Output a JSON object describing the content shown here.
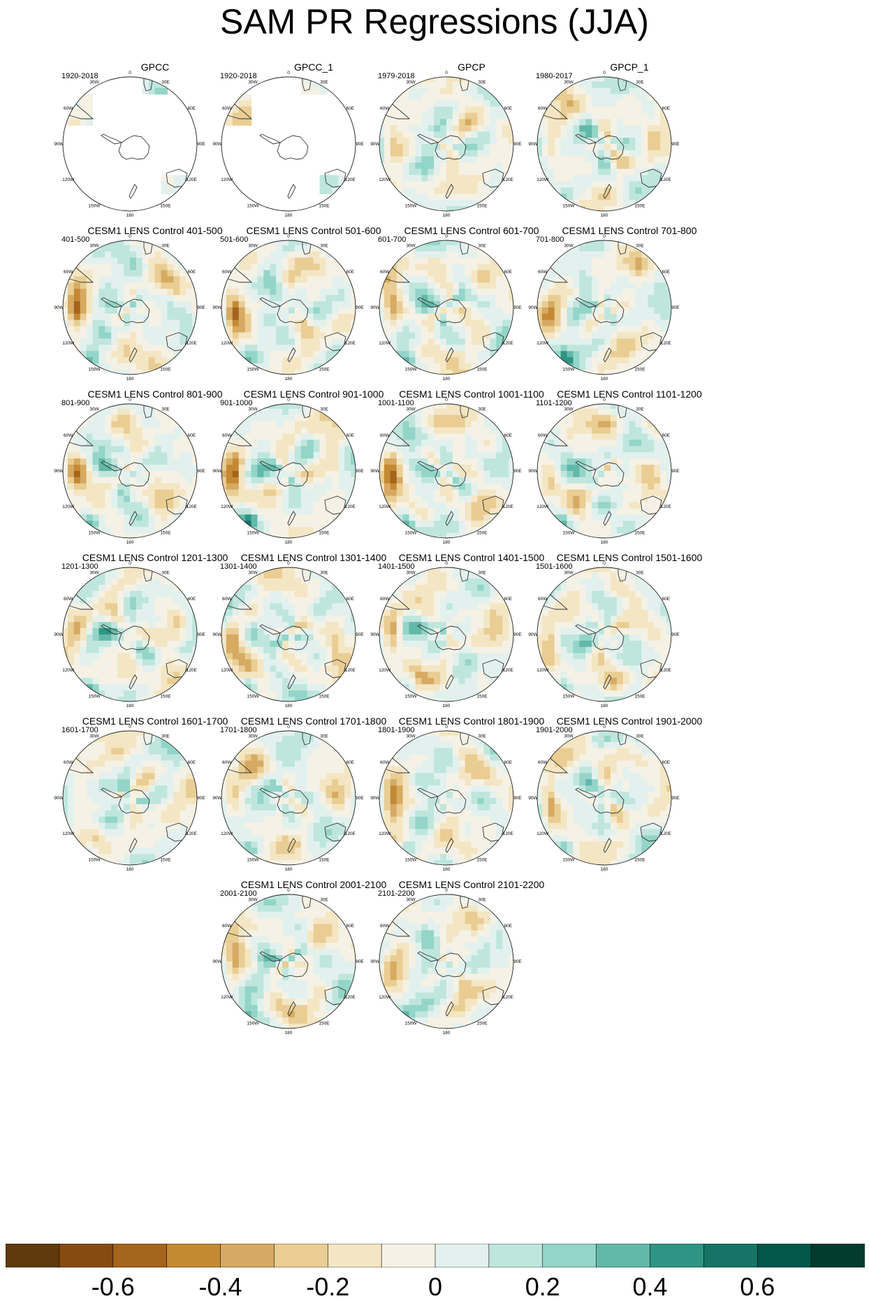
{
  "title": "SAM PR Regressions (JJA)",
  "lon_labels": [
    "0",
    "30E",
    "60E",
    "90E",
    "120E",
    "150E",
    "180",
    "150W",
    "120W",
    "90W",
    "60W",
    "30W"
  ],
  "chart_data": {
    "type": "heatmap",
    "title": "SAM PR Regressions (JJA)",
    "projection": "south polar stereographic",
    "colorbar": {
      "levels": [
        -0.7,
        -0.6,
        -0.5,
        -0.4,
        -0.3,
        -0.2,
        -0.1,
        0,
        0.1,
        0.2,
        0.3,
        0.4,
        0.5,
        0.6,
        0.7
      ],
      "colors": [
        "#5e3a0a",
        "#854b10",
        "#a4641c",
        "#c48933",
        "#d6aa62",
        "#e9cd93",
        "#f4e6c3",
        "#f5f1e5",
        "#e3f1ee",
        "#bfe6dd",
        "#93d5c8",
        "#62b8a9",
        "#2f9484",
        "#157466",
        "#02574a",
        "#043b31"
      ],
      "tick_labels": [
        "-0.6",
        "-0.4",
        "-0.2",
        "0",
        "0.2",
        "0.4",
        "0.6"
      ],
      "tick_values": [
        -0.6,
        -0.4,
        -0.2,
        0,
        0.2,
        0.4,
        0.6
      ]
    },
    "panels": [
      {
        "title": "GPCC",
        "period": "1920-2018",
        "coverage": "land"
      },
      {
        "title": "GPCC_1",
        "period": "1920-2018",
        "coverage": "land"
      },
      {
        "title": "GPCP",
        "period": "1979-2018",
        "coverage": "full"
      },
      {
        "title": "GPCP_1",
        "period": "1980-2017",
        "coverage": "full"
      },
      {
        "title": "CESM1 LENS Control 401-500",
        "period": "401-500",
        "coverage": "full"
      },
      {
        "title": "CESM1 LENS Control 501-600",
        "period": "501-600",
        "coverage": "full"
      },
      {
        "title": "CESM1 LENS Control 601-700",
        "period": "601-700",
        "coverage": "full"
      },
      {
        "title": "CESM1 LENS Control 701-800",
        "period": "701-800",
        "coverage": "full"
      },
      {
        "title": "CESM1 LENS Control 801-900",
        "period": "801-900",
        "coverage": "full"
      },
      {
        "title": "CESM1 LENS Control 901-1000",
        "period": "901-1000",
        "coverage": "full"
      },
      {
        "title": "CESM1 LENS Control 1001-1100",
        "period": "1001-1100",
        "coverage": "full"
      },
      {
        "title": "CESM1 LENS Control 1101-1200",
        "period": "1101-1200",
        "coverage": "full"
      },
      {
        "title": "CESM1 LENS Control 1201-1300",
        "period": "1201-1300",
        "coverage": "full"
      },
      {
        "title": "CESM1 LENS Control 1301-1400",
        "period": "1301-1400",
        "coverage": "full"
      },
      {
        "title": "CESM1 LENS Control 1401-1500",
        "period": "1401-1500",
        "coverage": "full"
      },
      {
        "title": "CESM1 LENS Control 1501-1600",
        "period": "1501-1600",
        "coverage": "full"
      },
      {
        "title": "CESM1 LENS Control 1601-1700",
        "period": "1601-1700",
        "coverage": "full"
      },
      {
        "title": "CESM1 LENS Control 1701-1800",
        "period": "1701-1800",
        "coverage": "full"
      },
      {
        "title": "CESM1 LENS Control 1801-1900",
        "period": "1801-1900",
        "coverage": "full"
      },
      {
        "title": "CESM1 LENS Control 1901-2000",
        "period": "1901-2000",
        "coverage": "full"
      },
      {
        "title": "CESM1 LENS Control 2001-2100",
        "period": "2001-2100",
        "coverage": "full"
      },
      {
        "title": "CESM1 LENS Control 2101-2200",
        "period": "2101-2200",
        "coverage": "full"
      }
    ]
  }
}
